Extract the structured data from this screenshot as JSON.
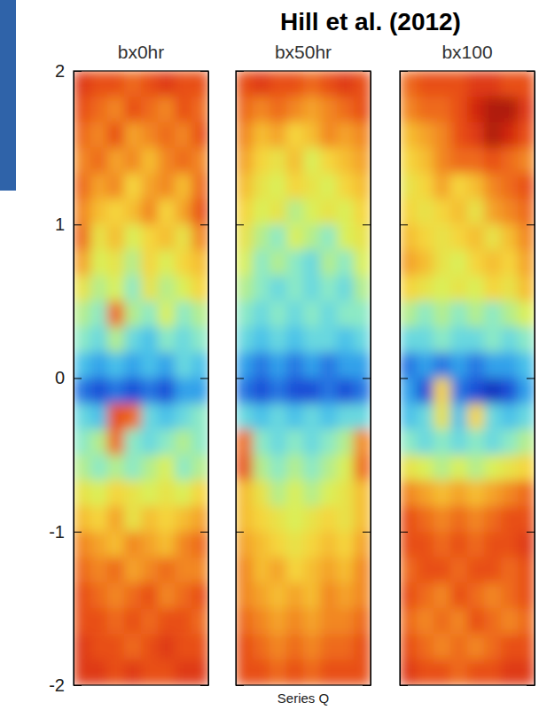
{
  "chart_data": {
    "type": "heatmap",
    "title": "Hill et al. (2012)",
    "xlabel": "Series Q",
    "ylim": [
      -2,
      2
    ],
    "yticks": [
      -2,
      -1,
      0,
      1,
      2
    ],
    "tick_labels": "y",
    "zlim": [
      0,
      1
    ],
    "panels": [
      {
        "title": "bx0hr",
        "cells": [
          [
            0.85,
            0.8,
            0.8,
            0.75,
            0.8,
            0.85,
            0.8,
            0.8
          ],
          [
            0.8,
            0.75,
            0.7,
            0.8,
            0.75,
            0.7,
            0.8,
            0.75
          ],
          [
            0.75,
            0.7,
            0.8,
            0.65,
            0.7,
            0.75,
            0.7,
            0.8
          ],
          [
            0.7,
            0.75,
            0.65,
            0.7,
            0.6,
            0.7,
            0.75,
            0.7
          ],
          [
            0.75,
            0.65,
            0.7,
            0.55,
            0.65,
            0.7,
            0.6,
            0.75
          ],
          [
            0.7,
            0.6,
            0.55,
            0.6,
            0.7,
            0.55,
            0.65,
            0.8
          ],
          [
            0.75,
            0.5,
            0.6,
            0.45,
            0.55,
            0.6,
            0.5,
            0.7
          ],
          [
            0.65,
            0.45,
            0.5,
            0.4,
            0.55,
            0.45,
            0.55,
            0.6
          ],
          [
            0.5,
            0.4,
            0.45,
            0.35,
            0.5,
            0.4,
            0.45,
            0.55
          ],
          [
            0.4,
            0.35,
            0.75,
            0.4,
            0.35,
            0.45,
            0.35,
            0.4
          ],
          [
            0.35,
            0.3,
            0.4,
            0.3,
            0.25,
            0.35,
            0.3,
            0.35
          ],
          [
            0.25,
            0.2,
            0.25,
            0.2,
            0.25,
            0.2,
            0.3,
            0.25
          ],
          [
            0.15,
            0.1,
            0.15,
            0.1,
            0.15,
            0.1,
            0.2,
            0.2
          ],
          [
            0.3,
            0.25,
            0.8,
            0.75,
            0.3,
            0.25,
            0.3,
            0.35
          ],
          [
            0.35,
            0.4,
            0.75,
            0.35,
            0.3,
            0.35,
            0.4,
            0.35
          ],
          [
            0.4,
            0.35,
            0.4,
            0.35,
            0.4,
            0.45,
            0.35,
            0.4
          ],
          [
            0.5,
            0.45,
            0.55,
            0.5,
            0.45,
            0.5,
            0.45,
            0.55
          ],
          [
            0.6,
            0.55,
            0.65,
            0.5,
            0.6,
            0.55,
            0.6,
            0.65
          ],
          [
            0.7,
            0.65,
            0.6,
            0.7,
            0.65,
            0.6,
            0.7,
            0.75
          ],
          [
            0.75,
            0.7,
            0.75,
            0.65,
            0.7,
            0.75,
            0.7,
            0.7
          ],
          [
            0.8,
            0.75,
            0.7,
            0.75,
            0.8,
            0.7,
            0.75,
            0.8
          ],
          [
            0.8,
            0.8,
            0.75,
            0.8,
            0.75,
            0.8,
            0.8,
            0.75
          ],
          [
            0.85,
            0.8,
            0.8,
            0.75,
            0.8,
            0.85,
            0.8,
            0.8
          ],
          [
            0.85,
            0.85,
            0.8,
            0.85,
            0.8,
            0.8,
            0.85,
            0.85
          ]
        ]
      },
      {
        "title": "bx50hr",
        "cells": [
          [
            0.8,
            0.85,
            0.8,
            0.8,
            0.75,
            0.8,
            0.85,
            0.8
          ],
          [
            0.75,
            0.7,
            0.75,
            0.7,
            0.65,
            0.7,
            0.75,
            0.8
          ],
          [
            0.7,
            0.6,
            0.65,
            0.55,
            0.6,
            0.7,
            0.65,
            0.7
          ],
          [
            0.65,
            0.55,
            0.5,
            0.6,
            0.45,
            0.55,
            0.6,
            0.65
          ],
          [
            0.6,
            0.5,
            0.45,
            0.55,
            0.5,
            0.45,
            0.55,
            0.6
          ],
          [
            0.55,
            0.45,
            0.5,
            0.4,
            0.45,
            0.5,
            0.45,
            0.55
          ],
          [
            0.5,
            0.4,
            0.35,
            0.45,
            0.4,
            0.35,
            0.45,
            0.5
          ],
          [
            0.45,
            0.35,
            0.4,
            0.35,
            0.3,
            0.4,
            0.35,
            0.45
          ],
          [
            0.4,
            0.35,
            0.3,
            0.35,
            0.3,
            0.35,
            0.3,
            0.4
          ],
          [
            0.35,
            0.3,
            0.35,
            0.3,
            0.35,
            0.3,
            0.35,
            0.35
          ],
          [
            0.3,
            0.25,
            0.3,
            0.25,
            0.3,
            0.3,
            0.25,
            0.3
          ],
          [
            0.2,
            0.15,
            0.2,
            0.15,
            0.2,
            0.15,
            0.2,
            0.2
          ],
          [
            0.15,
            0.1,
            0.15,
            0.1,
            0.1,
            0.15,
            0.1,
            0.15
          ],
          [
            0.3,
            0.25,
            0.3,
            0.25,
            0.3,
            0.25,
            0.3,
            0.3
          ],
          [
            0.75,
            0.35,
            0.3,
            0.35,
            0.3,
            0.35,
            0.4,
            0.7
          ],
          [
            0.8,
            0.4,
            0.35,
            0.4,
            0.35,
            0.4,
            0.45,
            0.75
          ],
          [
            0.6,
            0.5,
            0.4,
            0.45,
            0.4,
            0.45,
            0.5,
            0.6
          ],
          [
            0.6,
            0.55,
            0.5,
            0.45,
            0.5,
            0.55,
            0.5,
            0.6
          ],
          [
            0.65,
            0.6,
            0.55,
            0.5,
            0.55,
            0.6,
            0.55,
            0.65
          ],
          [
            0.7,
            0.6,
            0.65,
            0.55,
            0.6,
            0.65,
            0.6,
            0.7
          ],
          [
            0.7,
            0.65,
            0.6,
            0.65,
            0.6,
            0.7,
            0.65,
            0.7
          ],
          [
            0.75,
            0.7,
            0.65,
            0.7,
            0.65,
            0.7,
            0.7,
            0.75
          ],
          [
            0.8,
            0.75,
            0.7,
            0.75,
            0.7,
            0.75,
            0.75,
            0.8
          ],
          [
            0.8,
            0.8,
            0.75,
            0.8,
            0.75,
            0.8,
            0.8,
            0.8
          ]
        ]
      },
      {
        "title": "bx100",
        "cells": [
          [
            0.75,
            0.8,
            0.8,
            0.8,
            0.85,
            0.85,
            0.8,
            0.8
          ],
          [
            0.7,
            0.75,
            0.75,
            0.8,
            0.9,
            0.95,
            0.95,
            0.85
          ],
          [
            0.6,
            0.65,
            0.7,
            0.8,
            0.85,
            0.95,
            0.9,
            0.8
          ],
          [
            0.55,
            0.6,
            0.7,
            0.75,
            0.75,
            0.8,
            0.75,
            0.7
          ],
          [
            0.5,
            0.55,
            0.65,
            0.55,
            0.6,
            0.7,
            0.75,
            0.8
          ],
          [
            0.55,
            0.5,
            0.55,
            0.6,
            0.5,
            0.65,
            0.7,
            0.75
          ],
          [
            0.6,
            0.55,
            0.5,
            0.55,
            0.6,
            0.5,
            0.6,
            0.7
          ],
          [
            0.65,
            0.6,
            0.5,
            0.45,
            0.55,
            0.6,
            0.55,
            0.65
          ],
          [
            0.55,
            0.5,
            0.45,
            0.5,
            0.45,
            0.55,
            0.5,
            0.6
          ],
          [
            0.4,
            0.35,
            0.4,
            0.35,
            0.4,
            0.35,
            0.4,
            0.45
          ],
          [
            0.3,
            0.3,
            0.35,
            0.3,
            0.3,
            0.35,
            0.3,
            0.35
          ],
          [
            0.15,
            0.2,
            0.15,
            0.2,
            0.15,
            0.2,
            0.2,
            0.25
          ],
          [
            0.2,
            0.1,
            0.55,
            0.15,
            0.1,
            0.05,
            0.1,
            0.2
          ],
          [
            0.25,
            0.3,
            0.5,
            0.25,
            0.55,
            0.3,
            0.25,
            0.3
          ],
          [
            0.35,
            0.3,
            0.35,
            0.3,
            0.35,
            0.3,
            0.35,
            0.4
          ],
          [
            0.5,
            0.45,
            0.4,
            0.45,
            0.4,
            0.45,
            0.5,
            0.55
          ],
          [
            0.7,
            0.65,
            0.6,
            0.65,
            0.6,
            0.65,
            0.7,
            0.75
          ],
          [
            0.8,
            0.75,
            0.7,
            0.75,
            0.7,
            0.75,
            0.8,
            0.8
          ],
          [
            0.8,
            0.8,
            0.75,
            0.8,
            0.75,
            0.8,
            0.8,
            0.85
          ],
          [
            0.75,
            0.8,
            0.8,
            0.75,
            0.8,
            0.8,
            0.75,
            0.8
          ],
          [
            0.8,
            0.75,
            0.7,
            0.8,
            0.75,
            0.7,
            0.75,
            0.8
          ],
          [
            0.75,
            0.7,
            0.75,
            0.7,
            0.8,
            0.75,
            0.7,
            0.75
          ],
          [
            0.8,
            0.75,
            0.7,
            0.75,
            0.7,
            0.75,
            0.8,
            0.8
          ],
          [
            0.85,
            0.8,
            0.8,
            0.75,
            0.8,
            0.8,
            0.85,
            0.85
          ]
        ]
      }
    ]
  }
}
